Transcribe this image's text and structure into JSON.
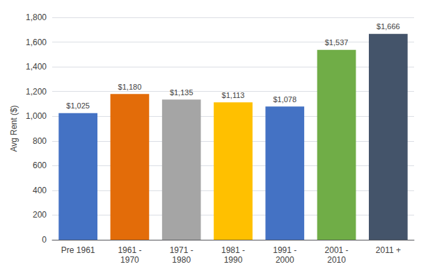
{
  "chart_data": {
    "type": "bar",
    "categories": [
      "Pre 1961",
      "1961 -\n1970",
      "1971 -\n1980",
      "1981 -\n1990",
      "1991 -\n2000",
      "2001 -\n2010",
      "2011 +"
    ],
    "values": [
      1025,
      1180,
      1135,
      1113,
      1078,
      1537,
      1666
    ],
    "value_labels": [
      "$1,025",
      "$1,180",
      "$1,135",
      "$1,113",
      "$1,078",
      "$1,537",
      "$1,666"
    ],
    "data_labels": true,
    "colors": [
      "#4472C4",
      "#E36C09",
      "#A5A5A5",
      "#FFC000",
      "#4472C4",
      "#70AD47",
      "#44546A"
    ],
    "ylabel": "Avg Rent ($)",
    "ylim": [
      0,
      1800
    ],
    "yticks": [
      0,
      200,
      400,
      600,
      800,
      {
        "value": 1000,
        "label": "1,000"
      },
      {
        "value": 1200,
        "label": "1,200"
      },
      {
        "value": 1400,
        "label": "1,400"
      },
      {
        "value": 1600,
        "label": "1,600"
      },
      {
        "value": 1800,
        "label": "1,800"
      }
    ],
    "grid": true
  }
}
